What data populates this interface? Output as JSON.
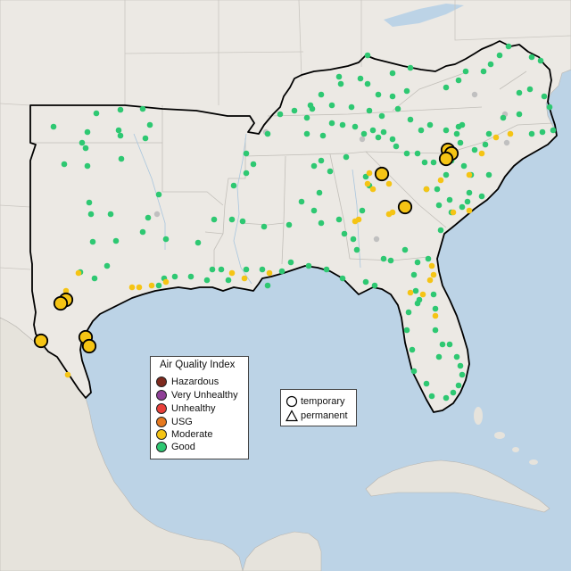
{
  "legend": {
    "title": "Air Quality Index",
    "categories": [
      {
        "label": "Hazardous",
        "color": "#7e2a1e"
      },
      {
        "label": "Very Unhealthy",
        "color": "#8f3f97"
      },
      {
        "label": "Unhealthy",
        "color": "#e8403a"
      },
      {
        "label": "USG",
        "color": "#e6791f"
      },
      {
        "label": "Moderate",
        "color": "#f5c414"
      },
      {
        "label": "Good",
        "color": "#2ec872"
      }
    ]
  },
  "monitor_types": {
    "temporary": "temporary",
    "permanent": "permanent"
  },
  "colors": {
    "water": "#bcd3e6",
    "land": "#ece9e4",
    "good": "#2ec872",
    "moderate": "#f5c414",
    "no_data": "#c0c0c0"
  }
}
